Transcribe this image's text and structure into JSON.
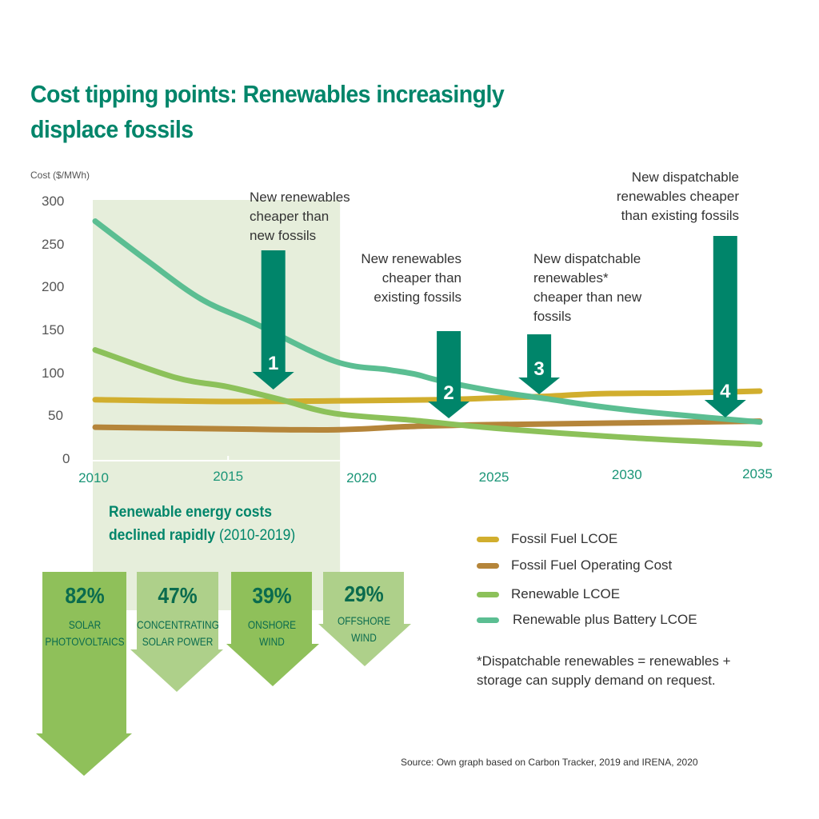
{
  "title": "Cost tipping points: Renewables increasingly displace fossils",
  "chart_data": {
    "type": "line",
    "title": "Cost tipping points: Renewables increasingly displace fossils",
    "ylabel": "Cost ($/MWh)",
    "xlabel": "",
    "ylim": [
      0,
      300
    ],
    "xlim": [
      2010,
      2035
    ],
    "yticks": [
      "300",
      "250",
      "200",
      "150",
      "100",
      "50",
      "0"
    ],
    "xticks": [
      "2010",
      "2015",
      "2020",
      "2025",
      "2030",
      "2035"
    ],
    "shaded_period": [
      2010,
      2019
    ],
    "legend_position": "bottom-right",
    "series": [
      {
        "name": "Fossil Fuel LCOE",
        "color": "#D1AE2E",
        "x": [
          2010,
          2015,
          2020,
          2023,
          2025,
          2027,
          2029,
          2032,
          2035
        ],
        "y": [
          71,
          69,
          70,
          71,
          73,
          75,
          78,
          79,
          81
        ]
      },
      {
        "name": "Fossil Fuel Operating Cost",
        "color": "#B5853A",
        "x": [
          2010,
          2015,
          2019,
          2022,
          2025,
          2030,
          2035
        ],
        "y": [
          39,
          37,
          36,
          40,
          42,
          44,
          46
        ]
      },
      {
        "name": "Renewable LCOE",
        "color": "#8CC15A",
        "x": [
          2010,
          2013,
          2015,
          2017,
          2019,
          2022,
          2025,
          2030,
          2035
        ],
        "y": [
          129,
          97,
          86,
          71,
          55,
          47,
          38,
          27,
          19
        ]
      },
      {
        "name": "Renewable plus Battery LCOE",
        "color": "#5BBE92",
        "x": [
          2010,
          2012,
          2014,
          2016,
          2019,
          2021,
          2022,
          2023,
          2025,
          2027,
          2029,
          2031,
          2035
        ],
        "y": [
          279,
          232,
          188,
          160,
          116,
          106,
          101,
          93,
          81,
          72,
          63,
          56,
          45
        ]
      }
    ],
    "annotations": [
      {
        "number": "1",
        "year": 2016.7,
        "text": [
          "New renewables",
          "cheaper than",
          "new fossils"
        ]
      },
      {
        "number": "2",
        "year": 2023.3,
        "text": [
          "New renewables",
          "cheaper than",
          "existing fossils"
        ]
      },
      {
        "number": "3",
        "year": 2026.7,
        "text": [
          "New dispatchable",
          "renewables*",
          "cheaper than new",
          "fossils"
        ]
      },
      {
        "number": "4",
        "year": 2033.7,
        "text": [
          "New dispatchable",
          "renewables cheaper",
          "than existing fossils"
        ]
      }
    ]
  },
  "decline": {
    "title_bold_1": "Renewable energy costs",
    "title_bold_2": "declined rapidly",
    "range": "(2010-2019)",
    "items": [
      {
        "percent": "82%",
        "line1": "SOLAR",
        "line2": "PHOTOVOLTAICS",
        "value": 82,
        "color": "#8FC05A"
      },
      {
        "percent": "47%",
        "line1": "CONCENTRATING",
        "line2": "SOLAR POWER",
        "value": 47,
        "color": "#AED08A"
      },
      {
        "percent": "39%",
        "line1": "ONSHORE",
        "line2": "WIND",
        "value": 39,
        "color": "#8FC05A"
      },
      {
        "percent": "29%",
        "line1": "OFFSHORE",
        "line2": "WIND",
        "value": 29,
        "color": "#AED08A"
      }
    ]
  },
  "legend": [
    {
      "label": "Fossil Fuel LCOE",
      "color": "#D1AE2E"
    },
    {
      "label": "Fossil Fuel Operating Cost",
      "color": "#B5853A"
    },
    {
      "label": "Renewable LCOE",
      "color": "#8CC15A"
    },
    {
      "label": "Renewable plus Battery LCOE",
      "color": "#5BBE92"
    }
  ],
  "footnote": "*Dispatchable renewables = renewables + storage can supply demand on request.",
  "source": "Source: Own graph based on Carbon Tracker, 2019 and IRENA, 2020",
  "colors": {
    "accent": "#00856A",
    "shade": "#E6EEDB",
    "axis_text": "#1A9577"
  }
}
